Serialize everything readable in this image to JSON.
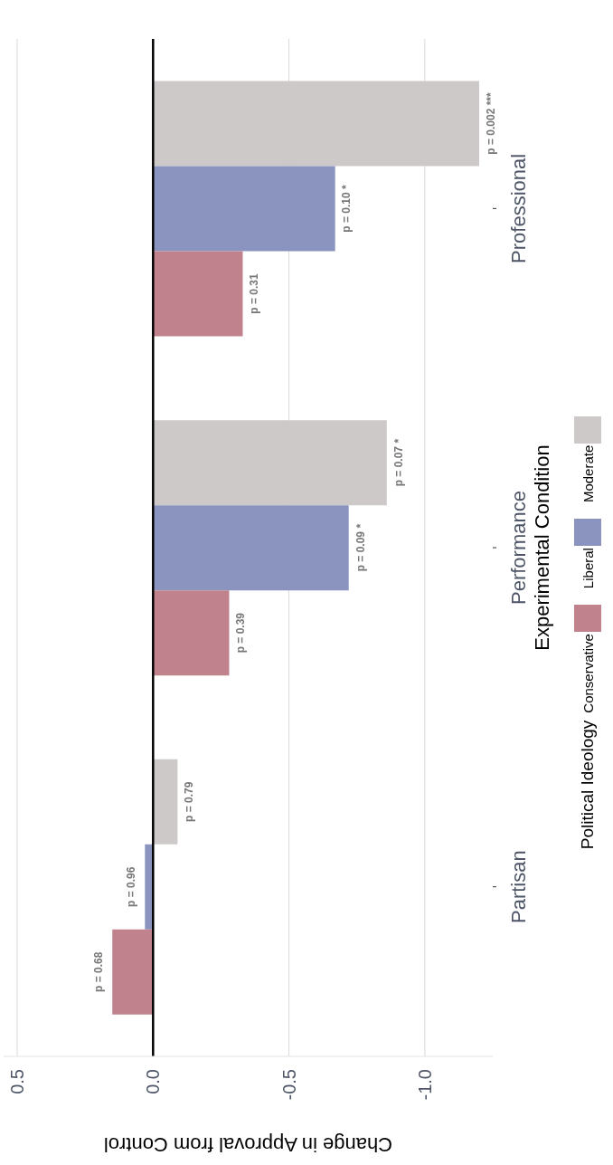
{
  "chart_data": {
    "type": "bar",
    "orientation": "horizontal",
    "categories": [
      "Professional",
      "Performance",
      "Partisan"
    ],
    "xlabel": "Change in Approval from Control",
    "ylabel": "Experimental Condition",
    "legend_title": "Political Ideology",
    "legend": "right",
    "grid": "x",
    "xlim": [
      0.55,
      -1.25
    ],
    "xticks": [
      {
        "value": 0.5,
        "label": "0.5"
      },
      {
        "value": 0,
        "label": "0.0"
      },
      {
        "value": -0.5,
        "label": "-0.5"
      },
      {
        "value": -1,
        "label": "-1.0"
      }
    ],
    "ref_lines": [
      {
        "axis": "x",
        "value": 0,
        "color": "#000000"
      }
    ],
    "series": [
      {
        "name": "Moderate",
        "color": "#cdc9c9",
        "values": [
          -1.2,
          -0.86,
          -0.09
        ]
      },
      {
        "name": "Liberal",
        "color": "#8b93bf",
        "values": [
          -0.67,
          -0.72,
          0.03
        ]
      },
      {
        "name": "Conservative",
        "color": "#c0838d",
        "values": [
          -0.33,
          -0.28,
          0.15
        ]
      }
    ],
    "annotations": [
      "p = 0.002 ***",
      "p = 0.10 *",
      "p = 0.31",
      "p = 0.07 *",
      "p = 0.09 *",
      "p = 0.39",
      "p = 0.79",
      "p = 0.96",
      "p = 0.68"
    ]
  }
}
